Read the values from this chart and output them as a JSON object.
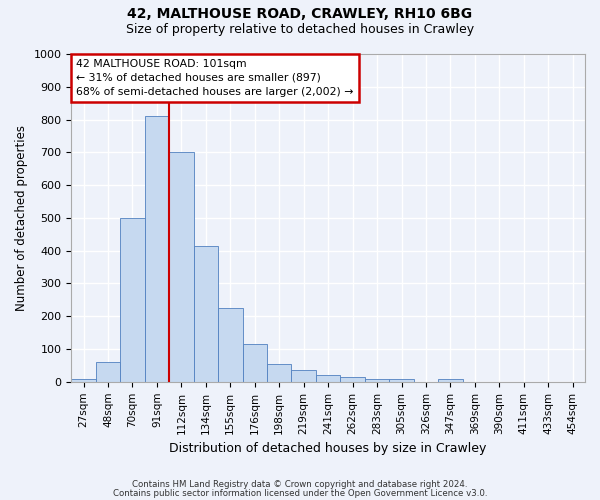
{
  "title1": "42, MALTHOUSE ROAD, CRAWLEY, RH10 6BG",
  "title2": "Size of property relative to detached houses in Crawley",
  "xlabel": "Distribution of detached houses by size in Crawley",
  "ylabel": "Number of detached properties",
  "footer1": "Contains HM Land Registry data © Crown copyright and database right 2024.",
  "footer2": "Contains public sector information licensed under the Open Government Licence v3.0.",
  "bin_labels": [
    "27sqm",
    "48sqm",
    "70sqm",
    "91sqm",
    "112sqm",
    "134sqm",
    "155sqm",
    "176sqm",
    "198sqm",
    "219sqm",
    "241sqm",
    "262sqm",
    "283sqm",
    "305sqm",
    "326sqm",
    "347sqm",
    "369sqm",
    "390sqm",
    "411sqm",
    "433sqm",
    "454sqm"
  ],
  "bar_values": [
    10,
    60,
    500,
    810,
    700,
    415,
    225,
    115,
    55,
    35,
    20,
    15,
    10,
    10,
    0,
    10,
    0,
    0,
    0,
    0,
    0
  ],
  "bar_color": "#c6d9f0",
  "bar_edge_color": "#5080c0",
  "vline_color": "#cc0000",
  "vline_pos": 3.5,
  "ylim": [
    0,
    1000
  ],
  "yticks": [
    0,
    100,
    200,
    300,
    400,
    500,
    600,
    700,
    800,
    900,
    1000
  ],
  "annotation_text": "42 MALTHOUSE ROAD: 101sqm\n← 31% of detached houses are smaller (897)\n68% of semi-detached houses are larger (2,002) →",
  "annotation_box_color": "#cc0000",
  "background_color": "#eef2fa",
  "grid_color": "#ffffff",
  "fig_width": 6.0,
  "fig_height": 5.0,
  "dpi": 100
}
